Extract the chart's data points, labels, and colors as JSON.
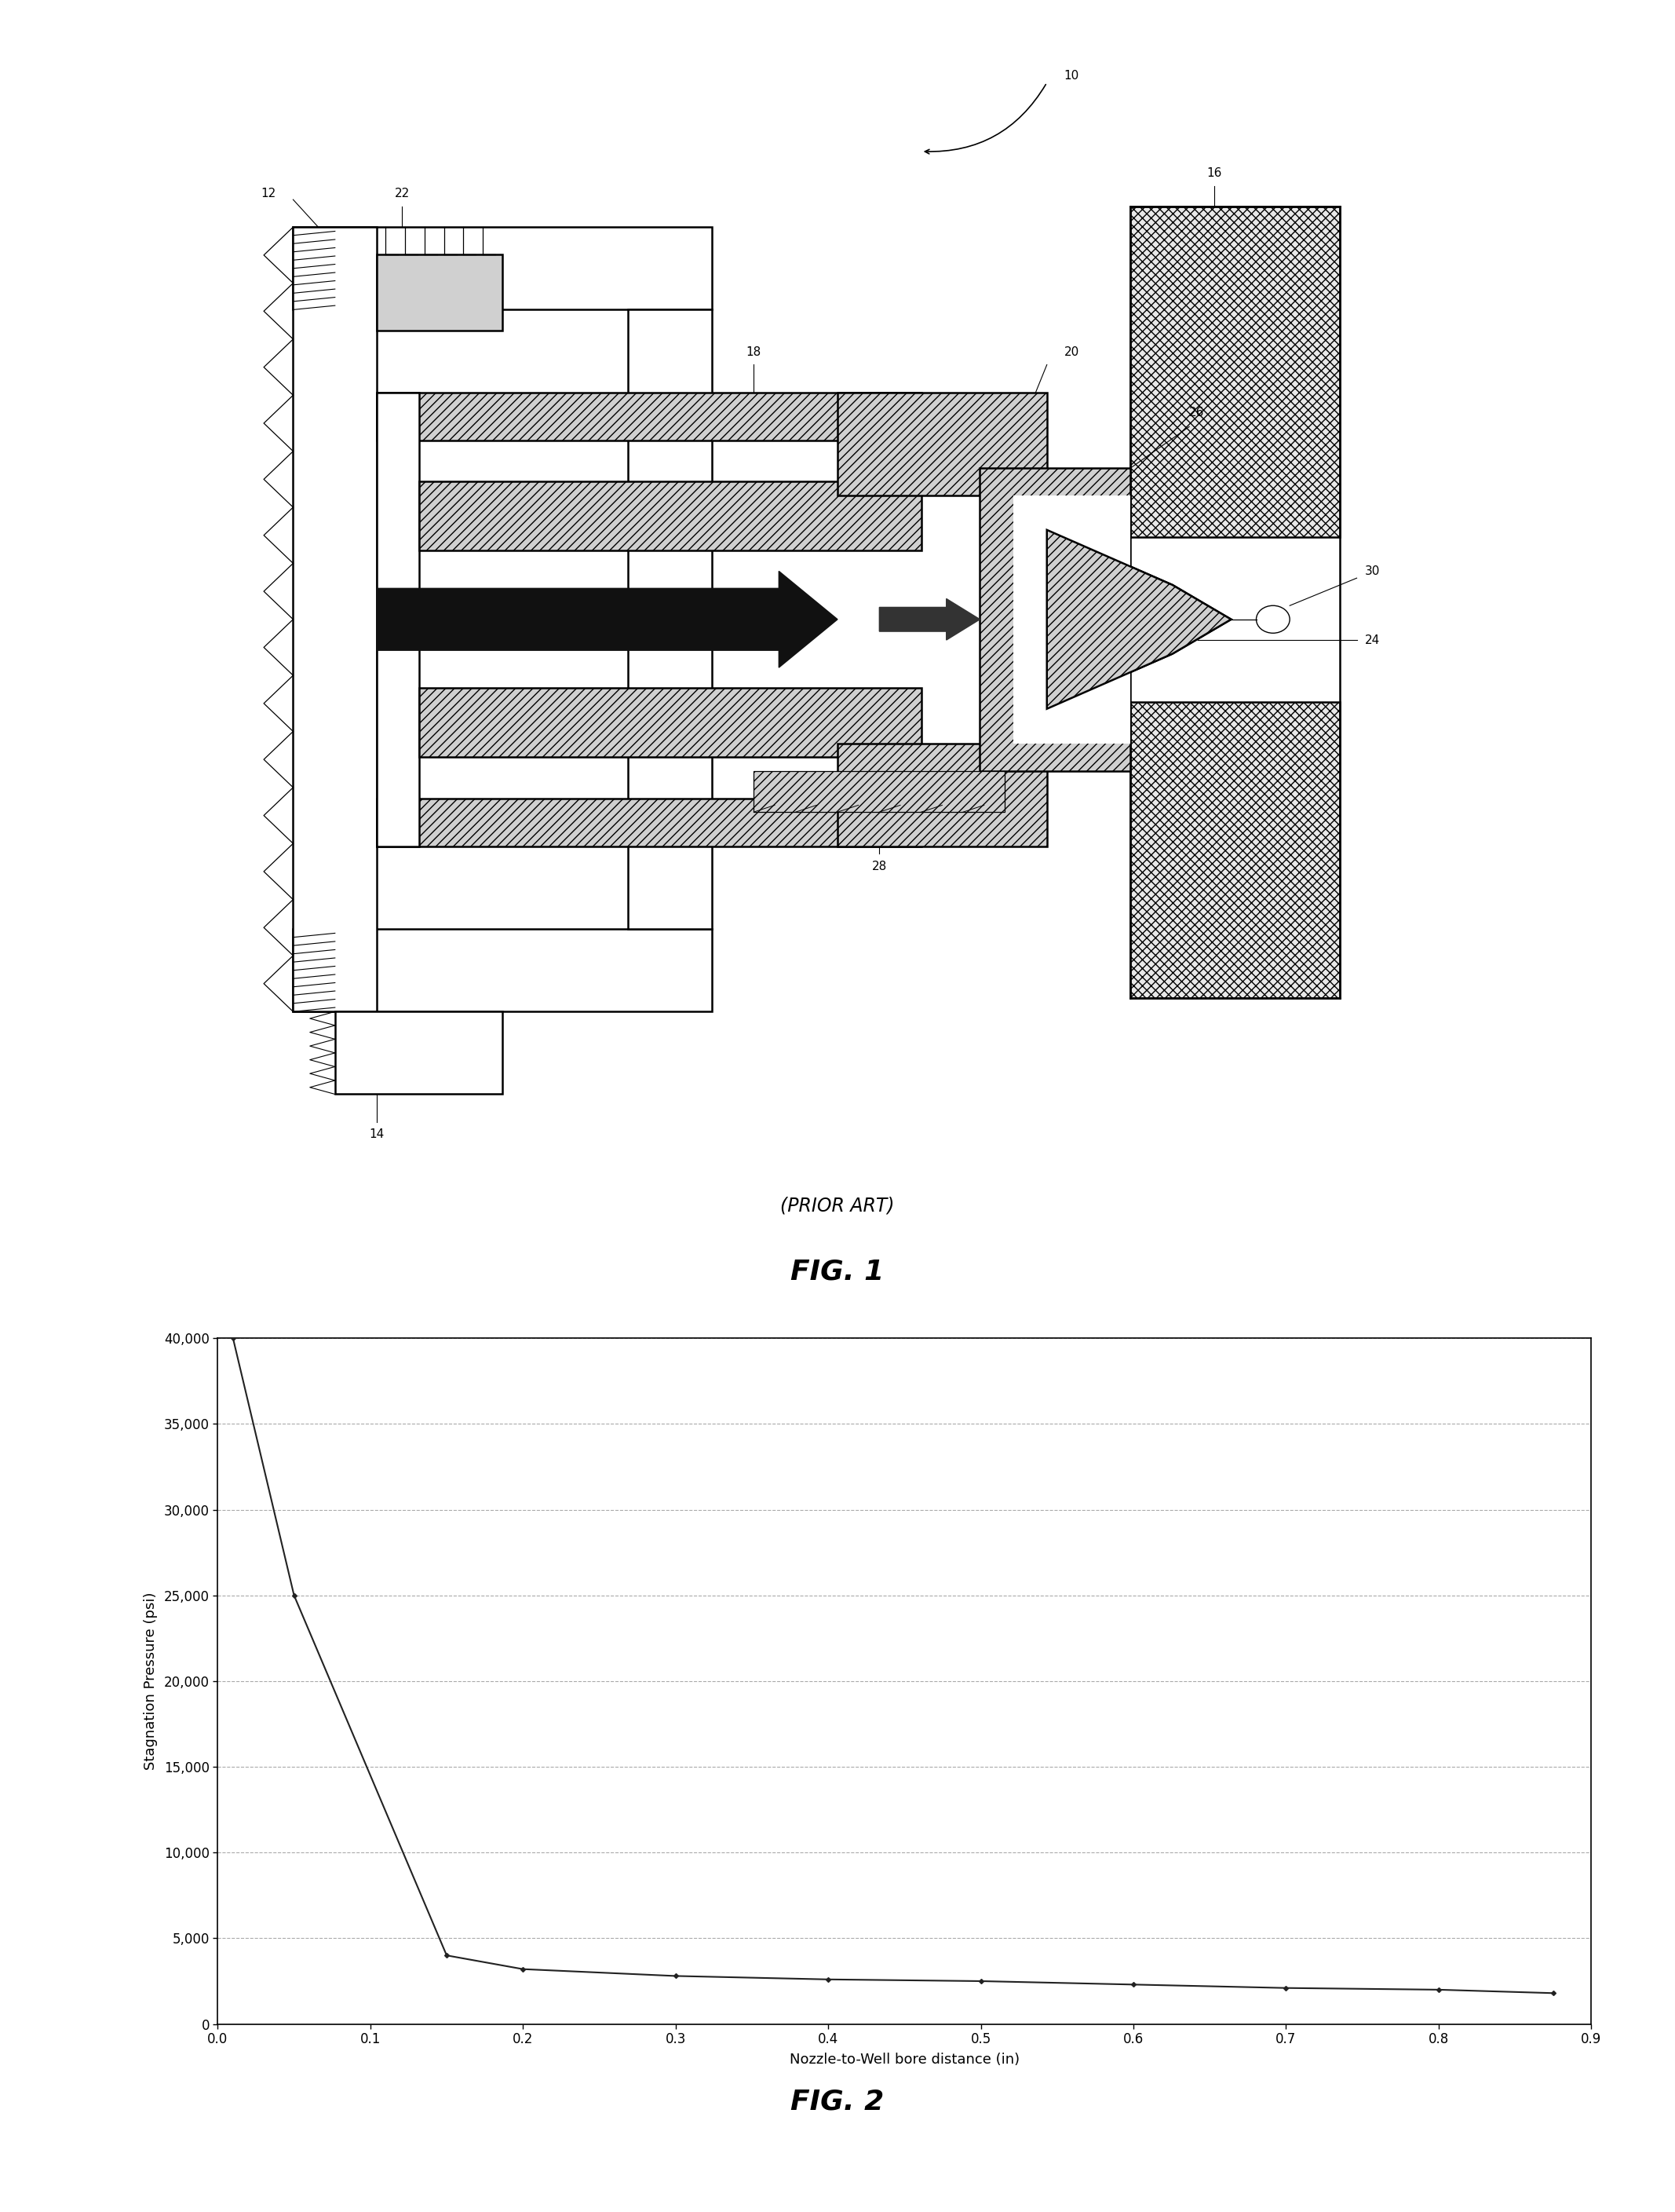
{
  "background_color": "#ffffff",
  "graph": {
    "x_data": [
      0.01,
      0.05,
      0.15,
      0.2,
      0.3,
      0.4,
      0.5,
      0.6,
      0.7,
      0.8,
      0.875
    ],
    "y_data": [
      40000,
      25000,
      4000,
      3200,
      2800,
      2600,
      2500,
      2300,
      2100,
      2000,
      1800
    ],
    "xlabel": "Nozzle-to-Well bore distance (in)",
    "ylabel": "Stagnation Pressure (psi)",
    "xlim": [
      0,
      0.9
    ],
    "ylim": [
      0,
      40000
    ],
    "yticks": [
      0,
      5000,
      10000,
      15000,
      20000,
      25000,
      30000,
      35000,
      40000
    ],
    "ytick_labels": [
      "0",
      "5,000",
      "10,000",
      "15,000",
      "20,000",
      "25,000",
      "30,000",
      "35,000",
      "40,000"
    ],
    "xticks": [
      0.0,
      0.1,
      0.2,
      0.3,
      0.4,
      0.5,
      0.6,
      0.7,
      0.8,
      0.9
    ],
    "line_color": "#222222",
    "marker": "D",
    "marker_size": 3,
    "grid_color": "#aaaaaa",
    "grid_style": "--"
  },
  "label_fs": 11,
  "lw_main": 1.8,
  "lw_thin": 0.9,
  "hatch_density": "///",
  "rock_hatch": "xxx"
}
